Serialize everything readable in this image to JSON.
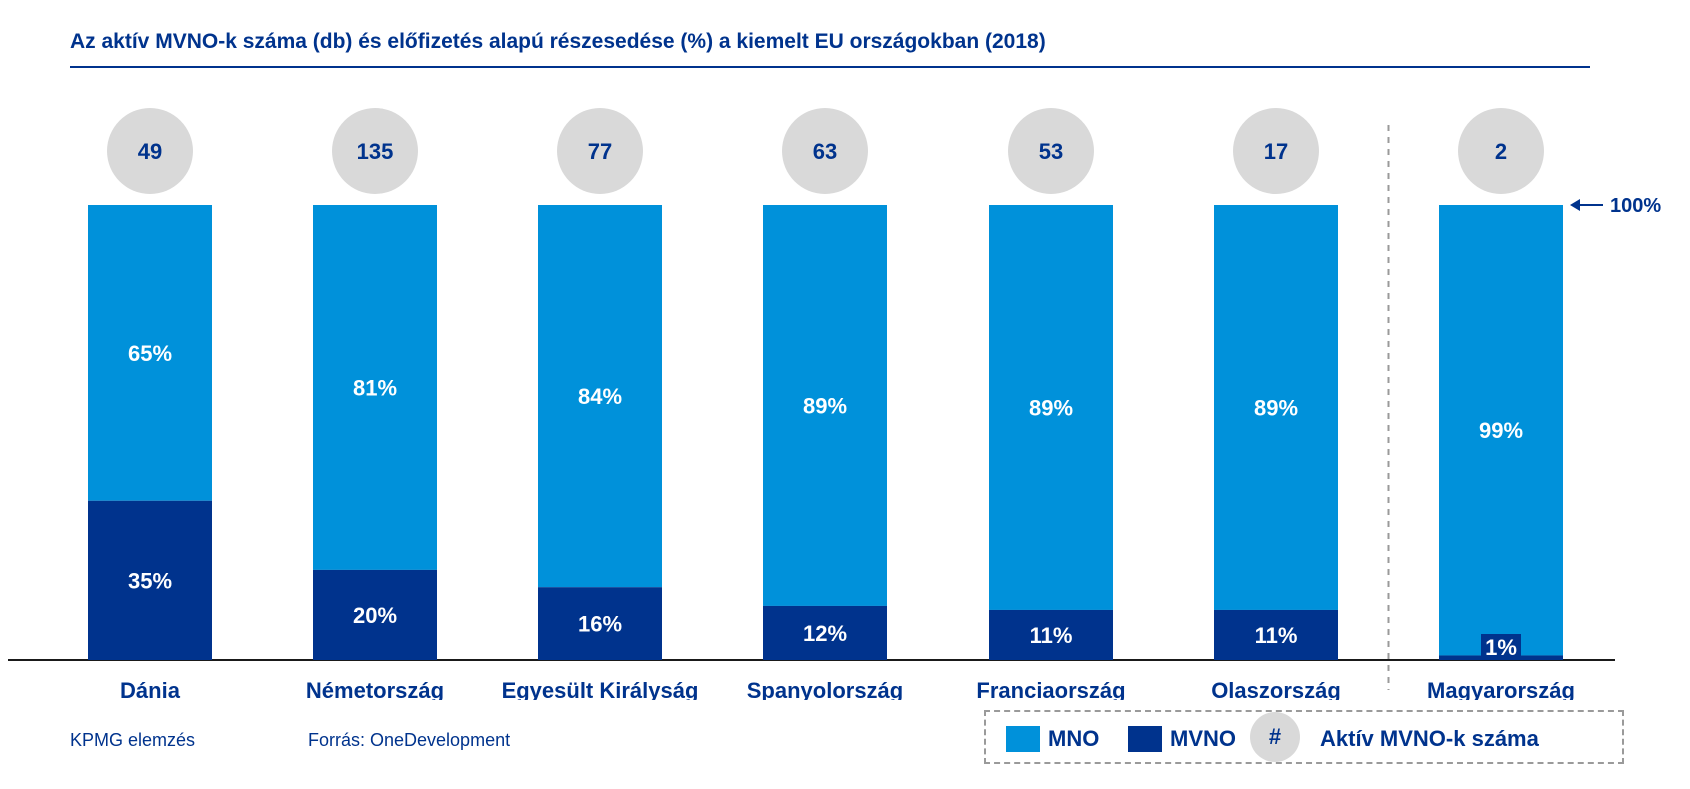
{
  "title": "Az aktív MVNO-k száma (db) és előfizetés alapú részesedése (%) a kiemelt EU országokban (2018)",
  "colors": {
    "mno": "#0091da",
    "mvno": "#00338d",
    "circle": "#d9d9d9",
    "text_dark": "#00338d",
    "axis": "#1a1a1a"
  },
  "chart_data": {
    "type": "bar",
    "stacked": true,
    "title": "Az aktív MVNO-k száma (db) és előfizetés alapú részesedése (%) a kiemelt EU országokban (2018)",
    "categories": [
      "Dánia",
      "Németország",
      "Egyesült Királyság",
      "Spanyolország",
      "Franciaország",
      "Olaszország",
      "Magyarország"
    ],
    "series": [
      {
        "name": "MVNO",
        "values": [
          35,
          20,
          16,
          12,
          11,
          11,
          1
        ],
        "labels": [
          "35%",
          "20%",
          "16%",
          "12%",
          "11%",
          "11%",
          "1%"
        ]
      },
      {
        "name": "MNO",
        "values": [
          65,
          81,
          84,
          89,
          89,
          89,
          99
        ],
        "labels": [
          "65%",
          "81%",
          "84%",
          "89%",
          "89%",
          "89%",
          "99%"
        ]
      }
    ],
    "mvno_counts": [
      "49",
      "135",
      "77",
      "63",
      "53",
      "17",
      "2"
    ],
    "ylim": [
      0,
      100
    ],
    "reference_label": "100%",
    "separator_before_index": 6
  },
  "footer": {
    "left": "KPMG elemzés",
    "source": "Forrás: OneDevelopment"
  },
  "legend": {
    "mno": "MNO",
    "mvno": "MVNO",
    "count_symbol": "#",
    "count_label": "Aktív MVNO-k száma"
  }
}
